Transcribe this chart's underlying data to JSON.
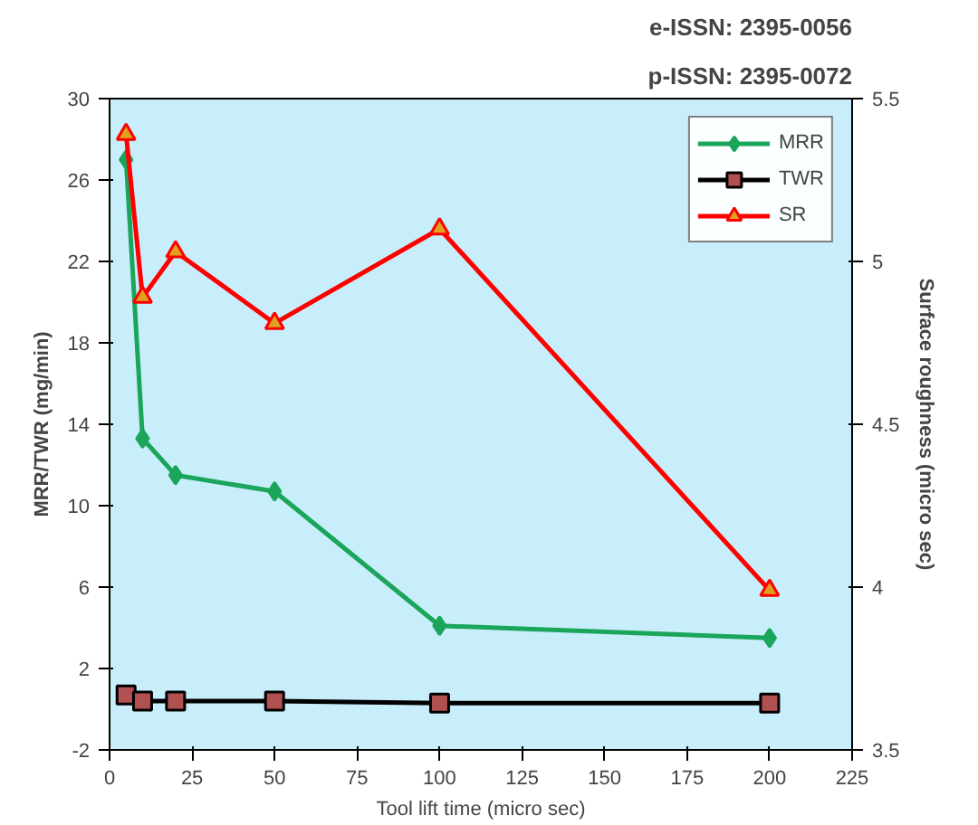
{
  "chart_data": {
    "type": "line",
    "xlabel": "Tool lift time (micro sec)",
    "ylabel": "MRR/TWR (mg/min)",
    "y2label": "Surface roughness (micro sec)",
    "annotations": [
      "e-ISSN: 2395-0056",
      "p-ISSN: 2395-0072"
    ],
    "x": [
      5,
      10,
      20,
      50,
      100,
      200
    ],
    "series": [
      {
        "name": "MRR",
        "color": "#1aa55a",
        "marker": "diamond",
        "values": [
          27,
          13.3,
          11.5,
          10.7,
          4.1,
          3.5
        ]
      },
      {
        "name": "TWR",
        "color": "#000000",
        "marker": "square",
        "values": [
          0.7,
          0.4,
          0.4,
          0.4,
          0.3,
          0.3
        ]
      },
      {
        "name": "SR",
        "color": "#ff0000",
        "marker": "triangle",
        "axis": "y2",
        "values": [
          5.39,
          4.89,
          5.03,
          4.81,
          5.1,
          3.99
        ]
      }
    ],
    "xlim": [
      0,
      225
    ],
    "xticks": [
      0,
      25,
      50,
      75,
      100,
      125,
      150,
      175,
      200,
      225
    ],
    "ylim": [
      -2,
      30
    ],
    "yticks": [
      -2,
      2,
      6,
      10,
      14,
      18,
      22,
      26,
      30
    ],
    "y2lim": [
      3.5,
      5.5
    ],
    "y2ticks": [
      3.5,
      4,
      4.5,
      5,
      5.5
    ],
    "grid": false,
    "legend": "top right"
  }
}
